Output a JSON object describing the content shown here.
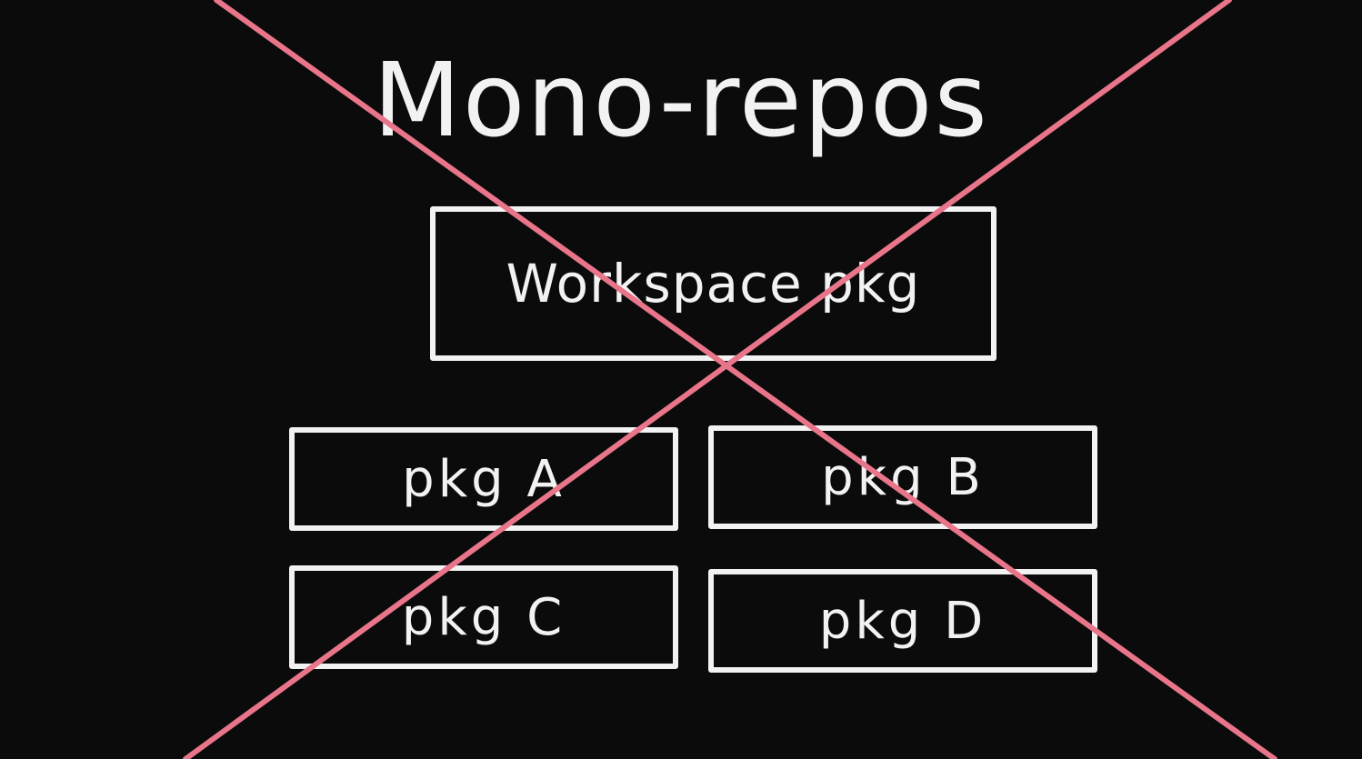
{
  "diagram": {
    "title": "Mono-repos",
    "workspace_box": {
      "label": "Workspace pkg"
    },
    "packages": [
      {
        "id": "a",
        "label": "pkg A"
      },
      {
        "id": "b",
        "label": "pkg B"
      },
      {
        "id": "c",
        "label": "pkg C"
      },
      {
        "id": "d",
        "label": "pkg D"
      }
    ],
    "cross_out": {
      "color": "#e8758a",
      "meaning": "crossed-out"
    },
    "colors": {
      "background": "#0b0b0b",
      "chalk": "#f2f2f2",
      "cross": "#e8758a"
    }
  }
}
